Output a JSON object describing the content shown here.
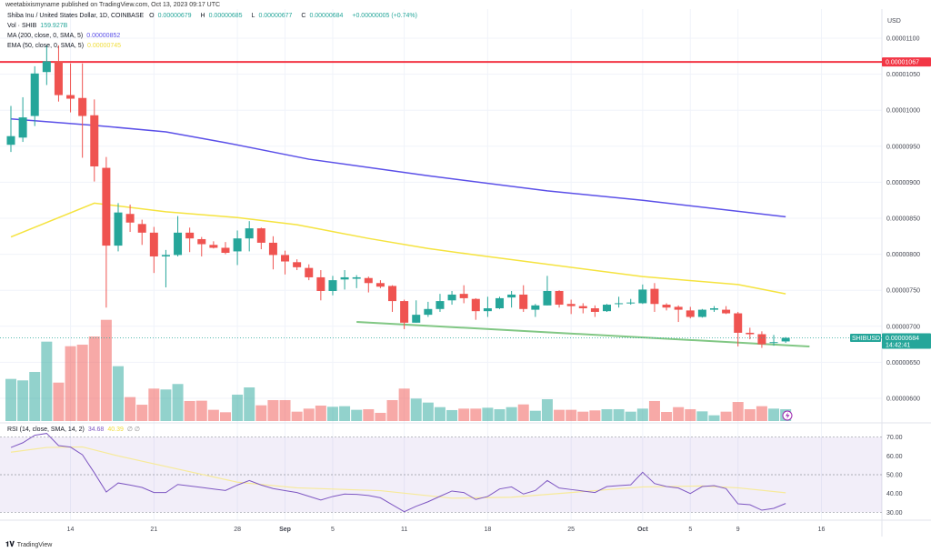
{
  "header": {
    "published": "weetabixismyname published on TradingView.com, Oct 13, 2023 09:17 UTC",
    "symbol": "Shiba Inu / United States Dollar, 1D, COINBASE",
    "o_label": "O",
    "o": "0.00000679",
    "h_label": "H",
    "h": "0.00000685",
    "l_label": "L",
    "l": "0.00000677",
    "c_label": "C",
    "c": "0.00000684",
    "change": "+0.00000005 (+0.74%)",
    "vol_label": "Vol · SHIB",
    "vol": "159.927B",
    "ma_label": "MA (200, close, 0, SMA, 5)",
    "ma": "0.00000852",
    "ema_label": "EMA (50, close, 0, SMA, 5)",
    "ema": "0.00000745",
    "rsi_label": "RSI (14, close, SMA, 14, 2)",
    "rsi": "34.68",
    "rsi_ma": "40.39",
    "rsi_extra": "∅ ∅"
  },
  "footer": {
    "brand": "TradingView",
    "logo_icon": "tradingview-logo-icon"
  },
  "colors": {
    "up": "#26a69a",
    "down": "#ef5350",
    "ma200": "#5b50e8",
    "ema50": "#f5e33f",
    "hline": "#f23645",
    "trendline": "#81c784",
    "rsi": "#7e57c2",
    "rsi_ma": "#f7ea9a"
  },
  "chart_data": {
    "type": "candlestick",
    "symbol": "SHIBUSD",
    "currency": "USD",
    "ylim": [
      5.7e-06,
      1.11e-05
    ],
    "y_ticks": [
      "0.00001100",
      "0.00001050",
      "0.00001000",
      "0.00000950",
      "0.00000900",
      "0.00000850",
      "0.00000800",
      "0.00000750",
      "0.00000700",
      "0.00000650",
      "0.00000600"
    ],
    "x_ticks": [
      {
        "date": "2023-08-14",
        "label": "14"
      },
      {
        "date": "2023-08-21",
        "label": "21"
      },
      {
        "date": "2023-08-28",
        "label": "28"
      },
      {
        "date": "2023-09-01",
        "label": "Sep"
      },
      {
        "date": "2023-09-05",
        "label": "5"
      },
      {
        "date": "2023-09-11",
        "label": "11"
      },
      {
        "date": "2023-09-18",
        "label": "18"
      },
      {
        "date": "2023-09-25",
        "label": "25"
      },
      {
        "date": "2023-10-01",
        "label": "Oct"
      },
      {
        "date": "2023-10-05",
        "label": "5"
      },
      {
        "date": "2023-10-09",
        "label": "9"
      },
      {
        "date": "2023-10-16",
        "label": "16"
      }
    ],
    "volume_unit": "B",
    "candles_columns": [
      "date",
      "open",
      "high",
      "low",
      "close",
      "volume"
    ],
    "candles": [
      [
        "2023-08-09",
        9.52e-06,
        1.006e-05,
        9.42e-06,
        9.64e-06,
        570
      ],
      [
        "2023-08-10",
        9.62e-06,
        1.018e-05,
        9.56e-06,
        9.9e-06,
        550
      ],
      [
        "2023-08-11",
        9.92e-06,
        1.061e-05,
        9.78e-06,
        1.051e-05,
        664
      ],
      [
        "2023-08-12",
        1.053e-05,
        1.09e-05,
        1.035e-05,
        1.068e-05,
        1074
      ],
      [
        "2023-08-13",
        1.068e-05,
        1.09e-05,
        1.012e-05,
        1.021e-05,
        520
      ],
      [
        "2023-08-14",
        1.021e-05,
        1.065e-05,
        9.97e-06,
        1.016e-05,
        1012
      ],
      [
        "2023-08-15",
        1.017e-05,
        1.065e-05,
        9.34e-06,
        9.92e-06,
        1033
      ],
      [
        "2023-08-16",
        9.93e-06,
        1.015e-05,
        9.01e-06,
        9.22e-06,
        1144
      ],
      [
        "2023-08-17",
        9.2e-06,
        9.35e-06,
        7.26e-06,
        8.12e-06,
        1369
      ],
      [
        "2023-08-18",
        8.12e-06,
        8.71e-06,
        8.04e-06,
        8.58e-06,
        742
      ],
      [
        "2023-08-19",
        8.56e-06,
        8.69e-06,
        8.31e-06,
        8.44e-06,
        324
      ],
      [
        "2023-08-20",
        8.42e-06,
        8.48e-06,
        8.13e-06,
        8.3e-06,
        221
      ],
      [
        "2023-08-21",
        8.3e-06,
        8.38e-06,
        7.74e-06,
        7.97e-06,
        439
      ],
      [
        "2023-08-22",
        7.97e-06,
        8.06e-06,
        7.54e-06,
        7.99e-06,
        427
      ],
      [
        "2023-08-23",
        7.99e-06,
        8.53e-06,
        7.97e-06,
        8.3e-06,
        501
      ],
      [
        "2023-08-24",
        8.3e-06,
        8.37e-06,
        8.03e-06,
        8.22e-06,
        271
      ],
      [
        "2023-08-25",
        8.21e-06,
        8.24e-06,
        7.97e-06,
        8.14e-06,
        275
      ],
      [
        "2023-08-26",
        8.13e-06,
        8.18e-06,
        8.08e-06,
        8.09e-06,
        152
      ],
      [
        "2023-08-27",
        8.09e-06,
        8.17e-06,
        8e-06,
        8.02e-06,
        119
      ],
      [
        "2023-08-28",
        8.04e-06,
        8.33e-06,
        7.85e-06,
        8.22e-06,
        357
      ],
      [
        "2023-08-29",
        8.22e-06,
        8.46e-06,
        8.04e-06,
        8.36e-06,
        455
      ],
      [
        "2023-08-30",
        8.36e-06,
        8.37e-06,
        8.07e-06,
        8.16e-06,
        213
      ],
      [
        "2023-08-31",
        8.16e-06,
        8.25e-06,
        7.79e-06,
        7.99e-06,
        283
      ],
      [
        "2023-09-01",
        7.99e-06,
        8.05e-06,
        7.72e-06,
        7.9e-06,
        283
      ],
      [
        "2023-09-02",
        7.89e-06,
        7.93e-06,
        7.78e-06,
        7.82e-06,
        127
      ],
      [
        "2023-09-03",
        7.81e-06,
        7.86e-06,
        7.64e-06,
        7.68e-06,
        168
      ],
      [
        "2023-09-04",
        7.68e-06,
        7.78e-06,
        7.36e-06,
        7.49e-06,
        209
      ],
      [
        "2023-09-05",
        7.49e-06,
        7.7e-06,
        7.43e-06,
        7.64e-06,
        193
      ],
      [
        "2023-09-06",
        7.65e-06,
        7.78e-06,
        7.51e-06,
        7.68e-06,
        201
      ],
      [
        "2023-09-07",
        7.66e-06,
        7.71e-06,
        7.53e-06,
        7.68e-06,
        152
      ],
      [
        "2023-09-08",
        7.67e-06,
        7.69e-06,
        7.47e-06,
        7.6e-06,
        160
      ],
      [
        "2023-09-09",
        7.6e-06,
        7.64e-06,
        7.53e-06,
        7.55e-06,
        111
      ],
      [
        "2023-09-10",
        7.56e-06,
        7.57e-06,
        7.2e-06,
        7.35e-06,
        283
      ],
      [
        "2023-09-11",
        7.35e-06,
        7.37e-06,
        6.96e-06,
        7.05e-06,
        439
      ],
      [
        "2023-09-12",
        7.05e-06,
        7.36e-06,
        7.05e-06,
        7.16e-06,
        304
      ],
      [
        "2023-09-13",
        7.16e-06,
        7.34e-06,
        7.13e-06,
        7.24e-06,
        250
      ],
      [
        "2023-09-14",
        7.24e-06,
        7.45e-06,
        7.2e-06,
        7.35e-06,
        188
      ],
      [
        "2023-09-15",
        7.36e-06,
        7.49e-06,
        7.3e-06,
        7.44e-06,
        148
      ],
      [
        "2023-09-16",
        7.45e-06,
        7.57e-06,
        7.32e-06,
        7.39e-06,
        168
      ],
      [
        "2023-09-17",
        7.38e-06,
        7.39e-06,
        7.09e-06,
        7.21e-06,
        168
      ],
      [
        "2023-09-18",
        7.21e-06,
        7.41e-06,
        7.13e-06,
        7.25e-06,
        180
      ],
      [
        "2023-09-19",
        7.25e-06,
        7.41e-06,
        7.24e-06,
        7.39e-06,
        160
      ],
      [
        "2023-09-20",
        7.4e-06,
        7.49e-06,
        7.26e-06,
        7.44e-06,
        188
      ],
      [
        "2023-09-21",
        7.44e-06,
        7.57e-06,
        7.2e-06,
        7.24e-06,
        225
      ],
      [
        "2023-09-22",
        7.23e-06,
        7.31e-06,
        7.13e-06,
        7.29e-06,
        139
      ],
      [
        "2023-09-23",
        7.29e-06,
        7.7e-06,
        7.29e-06,
        7.49e-06,
        295
      ],
      [
        "2023-09-24",
        7.49e-06,
        7.5e-06,
        7.26e-06,
        7.3e-06,
        152
      ],
      [
        "2023-09-25",
        7.31e-06,
        7.37e-06,
        7.17e-06,
        7.28e-06,
        152
      ],
      [
        "2023-09-26",
        7.28e-06,
        7.32e-06,
        7.18e-06,
        7.25e-06,
        127
      ],
      [
        "2023-09-27",
        7.25e-06,
        7.29e-06,
        7.13e-06,
        7.2e-06,
        144
      ],
      [
        "2023-09-28",
        7.21e-06,
        7.31e-06,
        7.2e-06,
        7.3e-06,
        160
      ],
      [
        "2023-09-29",
        7.31e-06,
        7.41e-06,
        7.26e-06,
        7.32e-06,
        160
      ],
      [
        "2023-09-30",
        7.32e-06,
        7.38e-06,
        7.3e-06,
        7.33e-06,
        127
      ],
      [
        "2023-10-01",
        7.32e-06,
        7.58e-06,
        7.31e-06,
        7.51e-06,
        168
      ],
      [
        "2023-10-02",
        7.52e-06,
        7.6e-06,
        7.2e-06,
        7.31e-06,
        271
      ],
      [
        "2023-10-03",
        7.3e-06,
        7.32e-06,
        7.22e-06,
        7.26e-06,
        123
      ],
      [
        "2023-10-04",
        7.27e-06,
        7.29e-06,
        7.06e-06,
        7.23e-06,
        188
      ],
      [
        "2023-10-05",
        7.22e-06,
        7.27e-06,
        7.11e-06,
        7.13e-06,
        160
      ],
      [
        "2023-10-06",
        7.13e-06,
        7.24e-06,
        7.12e-06,
        7.23e-06,
        131
      ],
      [
        "2023-10-07",
        7.23e-06,
        7.28e-06,
        7.2e-06,
        7.25e-06,
        78
      ],
      [
        "2023-10-08",
        7.23e-06,
        7.28e-06,
        7.17e-06,
        7.18e-06,
        127
      ],
      [
        "2023-10-09",
        7.18e-06,
        7.2e-06,
        6.72e-06,
        6.91e-06,
        258
      ],
      [
        "2023-10-10",
        6.91e-06,
        6.98e-06,
        6.82e-06,
        6.89e-06,
        160
      ],
      [
        "2023-10-11",
        6.89e-06,
        6.93e-06,
        6.7e-06,
        6.75e-06,
        201
      ],
      [
        "2023-10-12",
        6.77e-06,
        6.88e-06,
        6.73e-06,
        6.78e-06,
        168
      ],
      [
        "2023-10-13",
        6.79e-06,
        6.85e-06,
        6.77e-06,
        6.84e-06,
        159.927
      ]
    ],
    "ma200": [
      [
        "2023-08-09",
        9.88e-06
      ],
      [
        "2023-08-16",
        9.79e-06
      ],
      [
        "2023-08-22",
        9.7e-06
      ],
      [
        "2023-08-27",
        9.55e-06
      ],
      [
        "2023-09-03",
        9.32e-06
      ],
      [
        "2023-09-13",
        9.09e-06
      ],
      [
        "2023-09-23",
        8.88e-06
      ],
      [
        "2023-10-01",
        8.75e-06
      ],
      [
        "2023-10-13",
        8.52e-06
      ]
    ],
    "ema50": [
      [
        "2023-08-09",
        8.24e-06
      ],
      [
        "2023-08-16",
        8.71e-06
      ],
      [
        "2023-08-22",
        8.59e-06
      ],
      [
        "2023-08-28",
        8.51e-06
      ],
      [
        "2023-09-02",
        8.41e-06
      ],
      [
        "2023-09-08",
        8.22e-06
      ],
      [
        "2023-09-13",
        8.08e-06
      ],
      [
        "2023-09-17",
        7.99e-06
      ],
      [
        "2023-10-01",
        7.69e-06
      ],
      [
        "2023-10-09",
        7.58e-06
      ],
      [
        "2023-10-13",
        7.45e-06
      ]
    ],
    "horizontal_line": {
      "price": 1.067e-05,
      "label": "0.00001067"
    },
    "trendline": [
      [
        "2023-09-07",
        7.06e-06
      ],
      [
        "2023-10-15",
        6.72e-06
      ]
    ],
    "last_price": {
      "symbol_label": "SHIBUSD",
      "price": "0.00000684",
      "countdown": "14:42:41"
    },
    "rsi": {
      "ylim": [
        25,
        75
      ],
      "ticks": [
        "70.00",
        "60.00",
        "50.00",
        "40.00",
        "30.00"
      ],
      "band": [
        30,
        70
      ],
      "values": [
        64.5,
        67,
        71,
        72,
        65.5,
        64.7,
        60.6,
        51,
        40.8,
        45.6,
        44.5,
        43.2,
        40.5,
        40.5,
        44.8,
        44,
        43.2,
        42.4,
        41.6,
        44.5,
        46.9,
        44.5,
        42.6,
        41.5,
        40.5,
        38.5,
        36.5,
        38.4,
        39.7,
        39.5,
        38.9,
        37.7,
        34,
        30.3,
        33.2,
        35.6,
        38.5,
        41.3,
        40.5,
        36.8,
        38.4,
        42.4,
        43.5,
        39.7,
        41.6,
        46.9,
        42.9,
        42.1,
        41.3,
        40.5,
        43.7,
        44.2,
        44.6,
        51.3,
        45.3,
        43.7,
        42.9,
        40,
        43.7,
        44.2,
        42.6,
        34.5,
        34,
        31.1,
        32.1,
        34.68
      ],
      "ma": [
        [
          "2023-08-09",
          62
        ],
        [
          "2023-08-12",
          64.5
        ],
        [
          "2023-08-15",
          64.8
        ],
        [
          "2023-08-18",
          60
        ],
        [
          "2023-08-23",
          53
        ],
        [
          "2023-08-28",
          46
        ],
        [
          "2023-09-02",
          43
        ],
        [
          "2023-09-09",
          41.5
        ],
        [
          "2023-09-15",
          37.5
        ],
        [
          "2023-09-20",
          38
        ],
        [
          "2023-09-25",
          40.5
        ],
        [
          "2023-10-01",
          43.5
        ],
        [
          "2023-10-06",
          44
        ],
        [
          "2023-10-09",
          43
        ],
        [
          "2023-10-13",
          40.39
        ]
      ]
    }
  }
}
